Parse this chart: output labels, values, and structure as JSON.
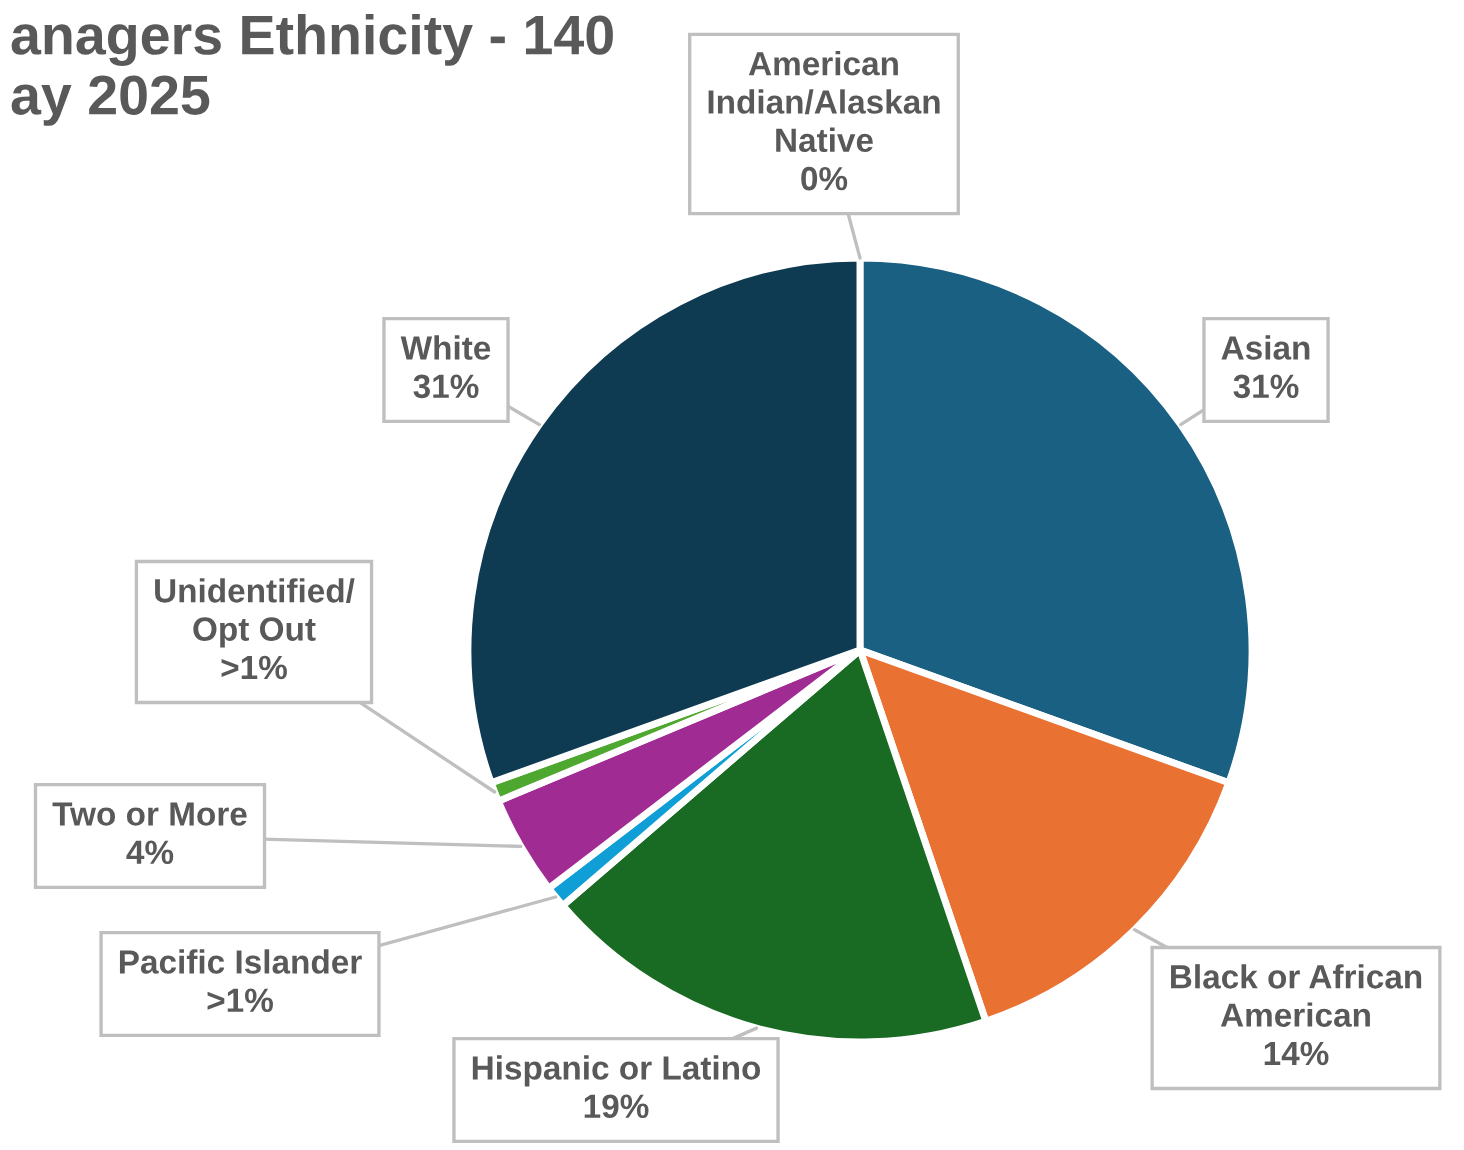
{
  "chart_data": {
    "type": "pie",
    "title": "anagers Ethnicity - 140\nay 2025",
    "categories": [
      "American Indian/Alaskan Native",
      "Asian",
      "Black or African American",
      "Hispanic or Latino",
      "Pacific Islander",
      "Two or More",
      "Unidentified/ Opt Out",
      "White"
    ],
    "values": [
      0,
      30.5,
      14.3,
      18.9,
      0.9,
      4.1,
      0.8,
      30.5
    ],
    "value_labels": [
      "0%",
      "31%",
      "14%",
      "19%",
      ">1%",
      "4%",
      ">1%",
      "31%"
    ],
    "colors": [
      "#7f7f7f",
      "#1a6082",
      "#e97132",
      "#196b24",
      "#0f9ed5",
      "#a02b93",
      "#4ea72e",
      "#0e3a52"
    ],
    "legend": false
  }
}
